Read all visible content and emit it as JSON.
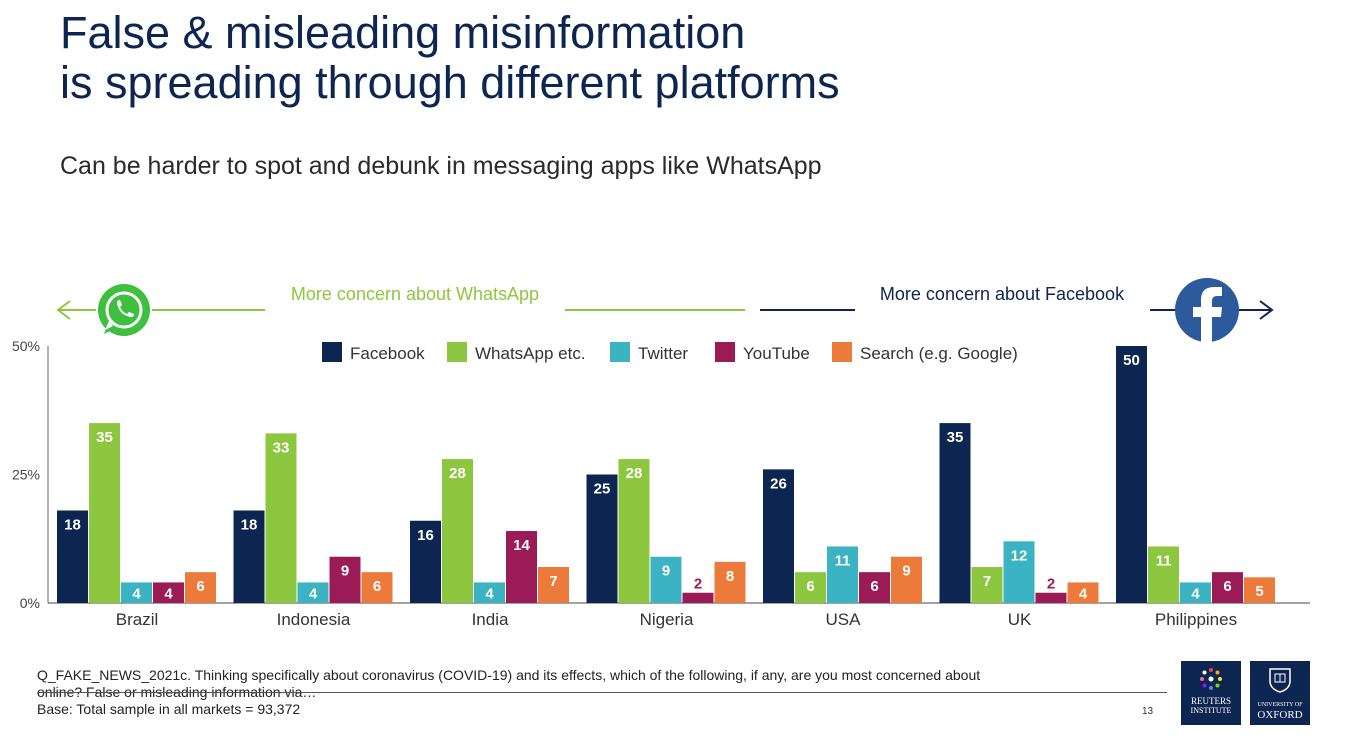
{
  "slide": {
    "title_line1": "False & misleading misinformation",
    "title_line2": "is spreading through different platforms",
    "subtitle": "Can be harder to spot and debunk in messaging apps like WhatsApp"
  },
  "banner": {
    "left_label": "More concern about WhatsApp",
    "right_label": "More concern about Facebook",
    "left_icon": "whatsapp-icon",
    "right_icon": "facebook-icon",
    "left_color": "#8dc63f",
    "right_color": "#0c2551"
  },
  "chart_data": {
    "type": "bar",
    "categories": [
      "Brazil",
      "Indonesia",
      "India",
      "Nigeria",
      "USA",
      "UK",
      "Philippines"
    ],
    "series": [
      {
        "name": "Facebook",
        "color": "#0c2551",
        "values": [
          18,
          18,
          16,
          25,
          26,
          35,
          50
        ]
      },
      {
        "name": "WhatsApp etc.",
        "color": "#8dc63f",
        "values": [
          35,
          33,
          28,
          28,
          6,
          7,
          11
        ]
      },
      {
        "name": "Twitter",
        "color": "#3bb3c3",
        "values": [
          4,
          4,
          4,
          9,
          11,
          12,
          4
        ]
      },
      {
        "name": "YouTube",
        "color": "#9b1b57",
        "values": [
          4,
          9,
          14,
          2,
          6,
          2,
          6
        ]
      },
      {
        "name": "Search (e.g. Google)",
        "color": "#ec7a3b",
        "values": [
          6,
          6,
          7,
          8,
          9,
          4,
          5
        ]
      }
    ],
    "ylim": [
      0,
      50
    ],
    "yticks": [
      0,
      25,
      50
    ],
    "ytick_labels": [
      "0%",
      "25%",
      "50%"
    ],
    "legend_position": "top",
    "grid": false
  },
  "footer": {
    "question_line1": "Q_FAKE_NEWS_2021c. Thinking specifically about coronavirus (COVID-19) and its effects, which of the following, if any, are you most concerned about",
    "question_line2": "online? False or misleading information via…",
    "base": "Base: Total sample in all markets = 93,372",
    "page_number": "13",
    "logo_reuters_line1": "REUTERS",
    "logo_reuters_line2": "INSTITUTE",
    "logo_oxford_line1": "UNIVERSITY OF",
    "logo_oxford_line2": "OXFORD"
  }
}
